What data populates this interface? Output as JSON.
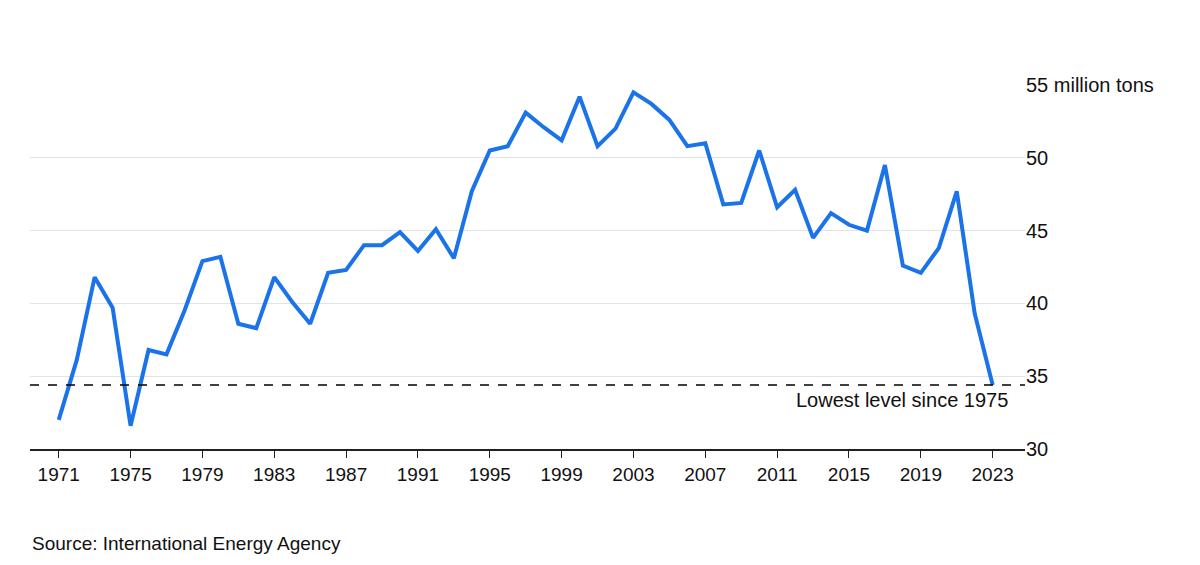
{
  "chart_data": {
    "type": "line",
    "source": "Source: International Energy Agency",
    "x": [
      1971,
      1972,
      1973,
      1974,
      1975,
      1976,
      1977,
      1978,
      1979,
      1980,
      1981,
      1982,
      1983,
      1984,
      1985,
      1986,
      1987,
      1988,
      1989,
      1990,
      1991,
      1992,
      1993,
      1994,
      1995,
      1996,
      1997,
      1998,
      1999,
      2000,
      2001,
      2002,
      2003,
      2004,
      2005,
      2006,
      2007,
      2008,
      2009,
      2010,
      2011,
      2012,
      2013,
      2014,
      2015,
      2016,
      2017,
      2018,
      2019,
      2020,
      2021,
      2022,
      2023
    ],
    "values": [
      32.0,
      36.1,
      41.8,
      39.7,
      31.6,
      36.8,
      36.5,
      39.5,
      42.9,
      43.2,
      38.6,
      38.3,
      41.8,
      40.1,
      38.6,
      42.1,
      42.3,
      44.0,
      44.0,
      44.9,
      43.6,
      45.1,
      43.1,
      47.7,
      50.5,
      50.8,
      53.1,
      52.1,
      51.2,
      54.2,
      50.8,
      52.0,
      54.5,
      53.7,
      52.6,
      50.8,
      51.0,
      46.8,
      46.9,
      50.5,
      46.6,
      47.8,
      44.5,
      46.2,
      45.4,
      45.0,
      49.5,
      42.6,
      42.1,
      43.8,
      47.7,
      39.3,
      34.4
    ],
    "color": "#1a73e8",
    "xlim": [
      1969.4,
      2024.8
    ],
    "xticks": [
      1971,
      1975,
      1979,
      1983,
      1987,
      1991,
      1995,
      1999,
      2003,
      2007,
      2011,
      2015,
      2019,
      2023
    ],
    "ylim": [
      30,
      55
    ],
    "yticks": [
      30,
      35,
      40,
      45,
      50,
      {
        "value": 55,
        "label": "55 million tons"
      }
    ],
    "grid": true,
    "annotation": {
      "text": "Lowest level since 1975",
      "value": 34.4,
      "line_style": "dashed"
    }
  }
}
